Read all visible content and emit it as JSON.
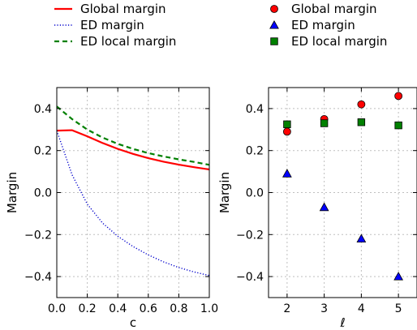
{
  "chart_data": [
    {
      "type": "line",
      "xlabel": "c",
      "ylabel": "Margin",
      "xlim": [
        0.0,
        1.0
      ],
      "ylim": [
        -0.5,
        0.5
      ],
      "xticks": [
        "0.0",
        "0.2",
        "0.4",
        "0.6",
        "0.8",
        "1.0"
      ],
      "yticks": [
        "−0.4",
        "−0.2",
        "0.0",
        "0.2",
        "0.4"
      ],
      "grid": true,
      "legend_position": "top",
      "series": [
        {
          "name": "Global margin",
          "color": "#ff0000",
          "style": "solid",
          "x": [
            0.0,
            0.1,
            0.2,
            0.3,
            0.4,
            0.5,
            0.6,
            0.7,
            0.8,
            0.9,
            1.0
          ],
          "y": [
            0.295,
            0.297,
            0.268,
            0.236,
            0.208,
            0.184,
            0.164,
            0.147,
            0.133,
            0.121,
            0.11
          ]
        },
        {
          "name": "ED margin",
          "color": "#0000cc",
          "style": "dotted",
          "x": [
            0.0,
            0.1,
            0.2,
            0.3,
            0.4,
            0.5,
            0.6,
            0.7,
            0.8,
            0.9,
            1.0
          ],
          "y": [
            0.295,
            0.085,
            -0.055,
            -0.145,
            -0.208,
            -0.257,
            -0.297,
            -0.33,
            -0.357,
            -0.378,
            -0.395
          ]
        },
        {
          "name": "ED local margin",
          "color": "#008000",
          "style": "dashed",
          "x": [
            0.0,
            0.1,
            0.2,
            0.3,
            0.4,
            0.5,
            0.6,
            0.7,
            0.8,
            0.9,
            1.0
          ],
          "y": [
            0.41,
            0.35,
            0.3,
            0.262,
            0.232,
            0.208,
            0.188,
            0.172,
            0.158,
            0.146,
            0.132
          ]
        }
      ]
    },
    {
      "type": "scatter",
      "xlabel": "ℓ",
      "ylabel": "Margin",
      "xlim": [
        1.5,
        5.5
      ],
      "ylim": [
        -0.5,
        0.5
      ],
      "xticks": [
        "2",
        "3",
        "4",
        "5"
      ],
      "yticks": [
        "−0.4",
        "−0.2",
        "0.0",
        "0.2",
        "0.4"
      ],
      "grid": true,
      "legend_position": "top",
      "series": [
        {
          "name": "Global margin",
          "color": "#ff0000",
          "marker": "circle",
          "x": [
            2,
            3,
            4,
            5
          ],
          "y": [
            0.29,
            0.35,
            0.42,
            0.46
          ]
        },
        {
          "name": "ED margin",
          "color": "#0000ff",
          "marker": "triangle",
          "x": [
            2,
            3,
            4,
            5
          ],
          "y": [
            0.09,
            -0.07,
            -0.22,
            -0.4
          ]
        },
        {
          "name": "ED local margin",
          "color": "#008000",
          "marker": "square",
          "x": [
            2,
            3,
            4,
            5
          ],
          "y": [
            0.325,
            0.33,
            0.335,
            0.32
          ]
        }
      ]
    }
  ]
}
